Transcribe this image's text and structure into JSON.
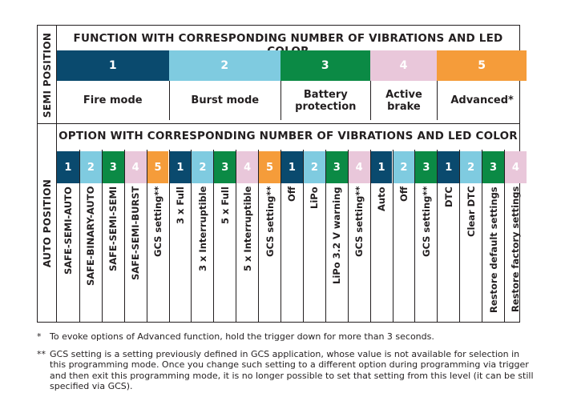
{
  "side_labels": {
    "semi": "SEMI POSITION",
    "auto": "AUTO POSITION"
  },
  "function_title": "FUNCTION WITH CORRESPONDING NUMBER OF VIBRATIONS AND LED COLOR",
  "option_title": "OPTION WITH CORRESPONDING NUMBER OF VIBRATIONS AND LED COLOR",
  "colors": {
    "1": "#0a4a6e",
    "2": "#7fcbe0",
    "3": "#0b8a45",
    "4": "#e9c7da",
    "5": "#f59c3a"
  },
  "functions": [
    {
      "num": "1",
      "label": "Fire mode",
      "color": "1"
    },
    {
      "num": "2",
      "label": "Burst mode",
      "color": "2"
    },
    {
      "num": "3",
      "label": "Battery protection",
      "color": "3"
    },
    {
      "num": "4",
      "label": "Active brake",
      "color": "4"
    },
    {
      "num": "5",
      "label": "Advanced*",
      "color": "5"
    }
  ],
  "options": [
    [
      {
        "num": "1",
        "label": "SAFE-SEMI-AUTO"
      },
      {
        "num": "2",
        "label": "SAFE-BINARY-AUTO"
      },
      {
        "num": "3",
        "label": "SAFE-SEMI-SEMI"
      },
      {
        "num": "4",
        "label": "SAFE-SEMI-BURST"
      },
      {
        "num": "5",
        "label": "GCS setting**"
      }
    ],
    [
      {
        "num": "1",
        "label": "3 x Full"
      },
      {
        "num": "2",
        "label": "3 x Interruptible"
      },
      {
        "num": "3",
        "label": "5 x Full"
      },
      {
        "num": "4",
        "label": "5 x Interruptible"
      },
      {
        "num": "5",
        "label": "GCS setting**"
      }
    ],
    [
      {
        "num": "1",
        "label": "Off"
      },
      {
        "num": "2",
        "label": "LiPo"
      },
      {
        "num": "3",
        "label": "LiPo 3.2 V warning"
      },
      {
        "num": "4",
        "label": "GCS setting**"
      }
    ],
    [
      {
        "num": "1",
        "label": "Auto"
      },
      {
        "num": "2",
        "label": "Off"
      },
      {
        "num": "3",
        "label": "GCS setting**"
      }
    ],
    [
      {
        "num": "1",
        "label": "DTC"
      },
      {
        "num": "2",
        "label": "Clear DTC"
      },
      {
        "num": "3",
        "label": "Restore default settings"
      },
      {
        "num": "4",
        "label": "Restore factory settings"
      }
    ]
  ],
  "notes": [
    {
      "mark": "*",
      "text": "To evoke options of Advanced function, hold the trigger down for more than 3 seconds."
    },
    {
      "mark": "**",
      "text": "GCS setting is a setting previously defined in GCS application, whose value is not available for selection in this programming mode. Once you change such setting to a different option during programming via trigger and then exit this programming mode, it is no longer possible to set that setting from this level (it can be still specified via GCS)."
    }
  ]
}
